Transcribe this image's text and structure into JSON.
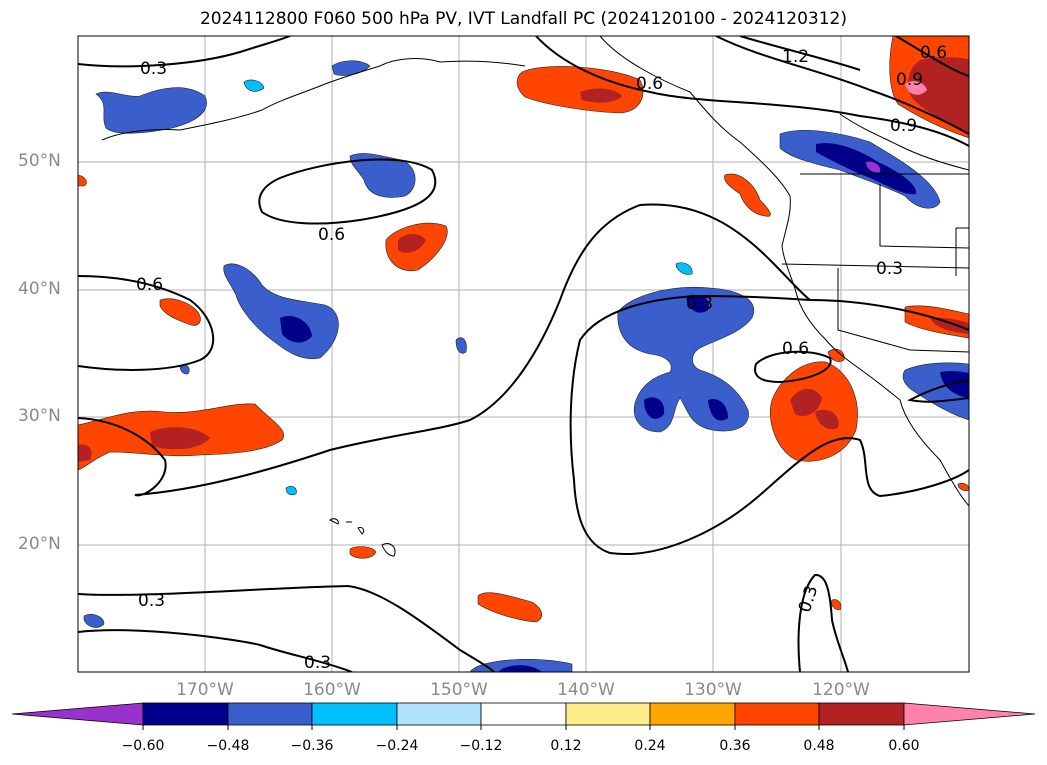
{
  "title": "2024112800 F060 500 hPa PV, IVT Landfall PC (2024120100 - 2024120312)",
  "lat_labels": [
    "50°N",
    "40°N",
    "30°N",
    "20°N"
  ],
  "lon_labels": [
    "170°W",
    "160°W",
    "150°W",
    "140°W",
    "130°W",
    "120°W"
  ],
  "contour_labels": [
    "0.3",
    "1.2",
    "0.9",
    "0.6",
    "0.6",
    "0.9",
    "0.6",
    "0.6",
    "0.3",
    "0.3",
    "0.6",
    "0.3",
    "0.3",
    "0.3"
  ],
  "colorbar": {
    "ticks": [
      "−0.60",
      "−0.48",
      "−0.36",
      "−0.24",
      "−0.12",
      "0.12",
      "0.24",
      "0.36",
      "0.48",
      "0.60"
    ],
    "colors": [
      "#9932cc",
      "#00008b",
      "#3a5fcd",
      "#00bfff",
      "#b0e2ff",
      "#ffffff",
      "#ffec8b",
      "#ffa500",
      "#ff4500",
      "#b22222",
      "#ff82ab"
    ]
  }
}
